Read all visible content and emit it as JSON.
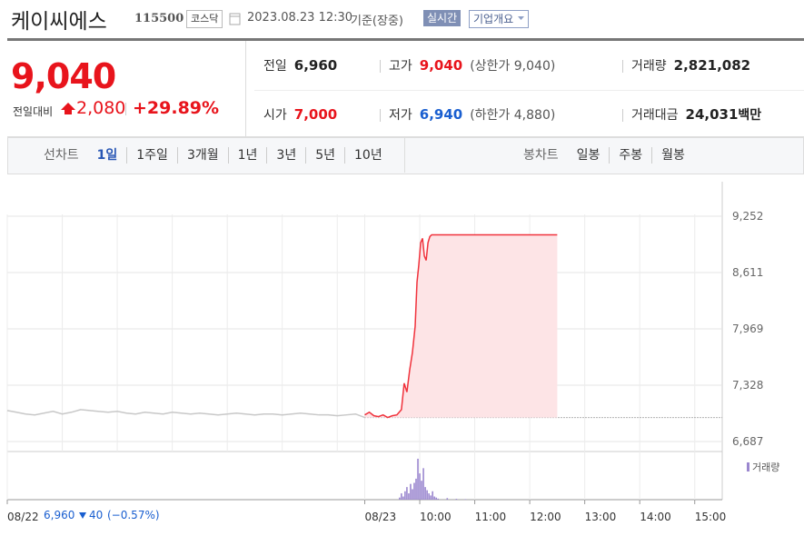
{
  "header": {
    "title": "케이씨에스",
    "code": "115500",
    "market": "코스닥",
    "datetime": "2023.08.23 12:30",
    "status": "기준(장중)",
    "realtime_button": "실시간",
    "company_button": "기업개요"
  },
  "quote": {
    "price": "9,040",
    "change_label": "전일대비",
    "change": "2,080",
    "change_rate": "+29.89%",
    "stats": [
      {
        "label": "전일",
        "value": "6,960",
        "color": "#222222"
      },
      {
        "label": "고가",
        "value": "9,040",
        "color": "#e8141c",
        "note": "(상한가 9,040)"
      },
      {
        "label": "거래량",
        "value": "2,821,082",
        "color": "#222222"
      },
      {
        "label": "시가",
        "value": "7,000",
        "color": "#e8141c"
      },
      {
        "label": "저가",
        "value": "6,940",
        "color": "#1a5fd0",
        "note": "(하한가 4,880)"
      },
      {
        "label": "거래대금",
        "value": "24,031",
        "color": "#222222",
        "unit": "백만"
      }
    ]
  },
  "tabs": {
    "line_label": "선차트",
    "line_periods": [
      "1일",
      "1주일",
      "3개월",
      "1년",
      "3년",
      "5년",
      "10년"
    ],
    "active_index": 0,
    "candle_label": "봉차트",
    "candle_periods": [
      "일봉",
      "주봉",
      "월봉"
    ]
  },
  "prev_day": {
    "close": "6,960",
    "change": "40",
    "change_rate": "(−0.57%)"
  },
  "chart_data": {
    "type": "line",
    "xlim": [
      0,
      780
    ],
    "ylim": [
      6573,
      9645
    ],
    "yticks": [
      {
        "value": 9252,
        "label": "9,252"
      },
      {
        "value": 8611,
        "label": "8,611"
      },
      {
        "value": 7969,
        "label": "7,969"
      },
      {
        "value": 7328,
        "label": "7,328"
      },
      {
        "value": 6687,
        "label": "6,687"
      }
    ],
    "xticks": [
      {
        "value": 0,
        "label": "08/22"
      },
      {
        "value": 390,
        "label": "08/23"
      },
      {
        "value": 450,
        "label": "10:00"
      },
      {
        "value": 510,
        "label": "11:00"
      },
      {
        "value": 570,
        "label": "12:00"
      },
      {
        "value": 630,
        "label": "13:00"
      },
      {
        "value": 690,
        "label": "14:00"
      },
      {
        "value": 750,
        "label": "15:00"
      }
    ],
    "xgrid": [
      60,
      120,
      180,
      240,
      300,
      360
    ],
    "grid": true,
    "baseline": 6960,
    "series": [
      {
        "color": "#c8c8c8",
        "x": [
          0,
          10,
          20,
          30,
          40,
          50,
          60,
          70,
          80,
          90,
          100,
          110,
          120,
          130,
          140,
          150,
          160,
          170,
          180,
          190,
          200,
          210,
          220,
          230,
          240,
          250,
          260,
          270,
          280,
          290,
          300,
          310,
          320,
          330,
          340,
          350,
          360,
          370,
          380,
          390
        ],
        "values": [
          7040,
          7020,
          7000,
          6990,
          7010,
          7030,
          7000,
          7020,
          7050,
          7040,
          7030,
          7020,
          7030,
          7010,
          7000,
          7020,
          7010,
          7000,
          7020,
          7010,
          7000,
          7010,
          7000,
          6990,
          7000,
          7010,
          7000,
          6990,
          7000,
          7000,
          6990,
          7000,
          7010,
          7000,
          6990,
          6990,
          6980,
          6990,
          7000,
          6960
        ]
      },
      {
        "color": "#f0323c",
        "fill": "#fde4e6",
        "x": [
          390,
          395,
          400,
          405,
          410,
          415,
          420,
          425,
          430,
          433,
          436,
          439,
          442,
          445,
          447,
          449,
          451,
          453,
          455,
          457,
          459,
          461,
          463,
          465,
          470,
          475,
          480,
          485,
          490,
          495,
          500,
          505,
          510,
          515,
          520,
          525,
          530,
          535,
          540,
          545,
          550,
          555,
          560,
          565,
          570,
          575,
          580,
          585,
          590,
          595,
          600
        ],
        "values": [
          6990,
          7020,
          6980,
          6970,
          6990,
          6960,
          6980,
          6990,
          7050,
          7350,
          7250,
          7500,
          7700,
          8000,
          8500,
          8700,
          8950,
          9000,
          8800,
          8750,
          8950,
          9020,
          9040,
          9040,
          9040,
          9040,
          9040,
          9040,
          9040,
          9040,
          9040,
          9040,
          9040,
          9040,
          9040,
          9040,
          9040,
          9040,
          9040,
          9040,
          9040,
          9040,
          9040,
          9040,
          9040,
          9040,
          9040,
          9040,
          9040,
          9040,
          9040
        ]
      }
    ],
    "volume": {
      "label": "거래량",
      "color": "#9b87cf",
      "ylim": [
        0,
        450000
      ],
      "x": [
        428,
        430,
        432,
        434,
        436,
        438,
        440,
        442,
        444,
        446,
        448,
        450,
        452,
        454,
        456,
        458,
        460,
        462,
        464,
        466,
        468,
        470,
        480,
        490,
        500
      ],
      "values": [
        20000,
        60000,
        30000,
        80000,
        120000,
        60000,
        150000,
        100000,
        160000,
        200000,
        390000,
        250000,
        180000,
        300000,
        120000,
        90000,
        60000,
        40000,
        80000,
        30000,
        20000,
        10000,
        15000,
        8000,
        5000
      ]
    }
  }
}
